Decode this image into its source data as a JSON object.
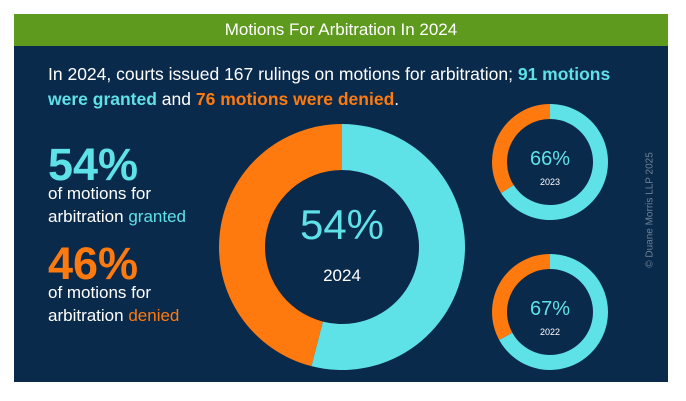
{
  "title": "Motions For Arbitration In 2024",
  "summary": {
    "intro": "In 2024, courts issued 167 rulings on motions for arbitration; ",
    "granted_text": "91 motions were granted",
    "joiner": " and ",
    "denied_text": "76 motions were denied",
    "end": "."
  },
  "left_stats": {
    "granted_pct": "54%",
    "granted_line1": "of motions for",
    "granted_line2_prefix": "arbitration ",
    "granted_word": "granted",
    "denied_pct": "46%",
    "denied_line1": "of motions for",
    "denied_line2_prefix": "arbitration ",
    "denied_word": "denied"
  },
  "colors": {
    "granted": "#5fe1e8",
    "denied": "#ff7a0e",
    "background": "#0a2a4c",
    "title_bar": "#5e9a1e"
  },
  "copyright": "© Duane Morris LLP 2025",
  "chart_data": [
    {
      "type": "pie",
      "label": "54%",
      "year": "2024",
      "slices": [
        {
          "name": "granted",
          "value": 54
        },
        {
          "name": "denied",
          "value": 46
        }
      ]
    },
    {
      "type": "pie",
      "label": "66%",
      "year": "2023",
      "slices": [
        {
          "name": "granted",
          "value": 66
        },
        {
          "name": "denied",
          "value": 34
        }
      ]
    },
    {
      "type": "pie",
      "label": "67%",
      "year": "2022",
      "slices": [
        {
          "name": "granted",
          "value": 67
        },
        {
          "name": "denied",
          "value": 33
        }
      ]
    }
  ]
}
